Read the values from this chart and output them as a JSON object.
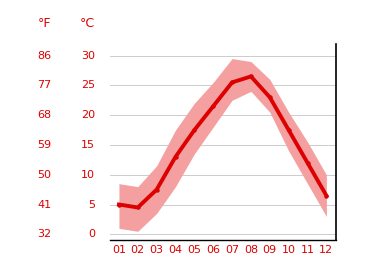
{
  "months": [
    1,
    2,
    3,
    4,
    5,
    6,
    7,
    8,
    9,
    10,
    11,
    12
  ],
  "month_labels": [
    "01",
    "02",
    "03",
    "04",
    "05",
    "06",
    "07",
    "08",
    "09",
    "10",
    "11",
    "12"
  ],
  "mean_temp": [
    5.0,
    4.5,
    7.5,
    13.0,
    17.5,
    21.5,
    25.5,
    26.5,
    23.0,
    17.5,
    12.0,
    6.5
  ],
  "max_temp": [
    8.5,
    8.0,
    11.5,
    17.5,
    22.0,
    25.5,
    29.5,
    29.0,
    26.0,
    20.5,
    15.5,
    10.0
  ],
  "min_temp": [
    1.0,
    0.5,
    3.5,
    8.0,
    13.5,
    18.0,
    22.5,
    24.0,
    20.5,
    14.0,
    8.5,
    3.0
  ],
  "line_color": "#dd0000",
  "fill_color": "#f5a0a0",
  "axis_color": "#dd0000",
  "grid_color": "#cccccc",
  "bg_color": "#ffffff",
  "ylim_celsius": [
    -1,
    32
  ],
  "celsius_ticks": [
    0,
    5,
    10,
    15,
    20,
    25,
    30
  ],
  "fahrenheit_ticks": [
    32,
    41,
    50,
    59,
    68,
    77,
    86
  ],
  "label_f": "°F",
  "label_c": "°C",
  "label_fontsize": 9,
  "tick_fontsize": 8,
  "line_width": 2.8,
  "marker": "o",
  "marker_size": 3.2
}
